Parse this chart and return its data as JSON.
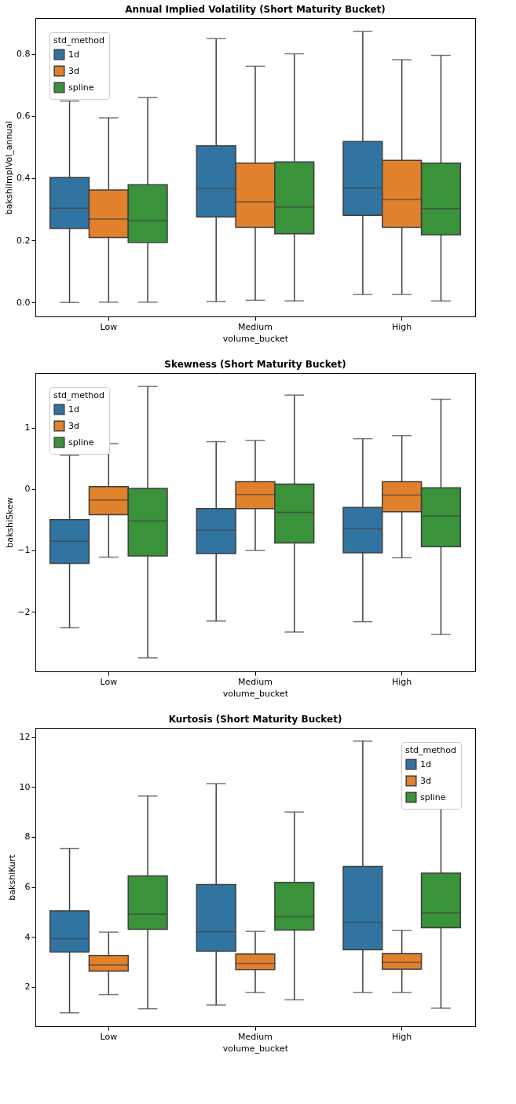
{
  "chart_data": [
    {
      "type": "box",
      "title": "Annual Implied Volatility (Short Maturity Bucket)",
      "xlabel": "volume_bucket",
      "ylabel": "bakshiImplVol_annual",
      "legend_title": "std_method",
      "legend": "top left",
      "categories": [
        "Low",
        "Medium",
        "High"
      ],
      "ylim": [
        -0.045,
        0.915
      ],
      "yticks": [
        {
          "value": 0,
          "label": "0.0"
        },
        {
          "value": 0.2,
          "label": "0.2"
        },
        {
          "value": 0.4,
          "label": "0.4"
        },
        {
          "value": 0.6,
          "label": "0.6"
        },
        {
          "value": 0.8,
          "label": "0.8"
        }
      ],
      "series": [
        {
          "name": "1d",
          "color": "#3274a1",
          "boxes": [
            {
              "low": 0.0,
              "q1": 0.238,
              "median": 0.303,
              "q3": 0.402,
              "high": 0.648
            },
            {
              "low": 0.003,
              "q1": 0.275,
              "median": 0.366,
              "q3": 0.504,
              "high": 0.849
            },
            {
              "low": 0.026,
              "q1": 0.28,
              "median": 0.368,
              "q3": 0.518,
              "high": 0.872
            }
          ]
        },
        {
          "name": "3d",
          "color": "#e1812c",
          "boxes": [
            {
              "low": 0.001,
              "q1": 0.209,
              "median": 0.268,
              "q3": 0.362,
              "high": 0.594
            },
            {
              "low": 0.007,
              "q1": 0.242,
              "median": 0.324,
              "q3": 0.448,
              "high": 0.76
            },
            {
              "low": 0.026,
              "q1": 0.242,
              "median": 0.331,
              "q3": 0.457,
              "high": 0.781
            }
          ]
        },
        {
          "name": "spline",
          "color": "#3a923a",
          "boxes": [
            {
              "low": 0.001,
              "q1": 0.193,
              "median": 0.264,
              "q3": 0.379,
              "high": 0.659
            },
            {
              "low": 0.005,
              "q1": 0.221,
              "median": 0.307,
              "q3": 0.452,
              "high": 0.8
            },
            {
              "low": 0.005,
              "q1": 0.218,
              "median": 0.302,
              "q3": 0.448,
              "high": 0.795
            }
          ]
        }
      ]
    },
    {
      "type": "box",
      "title": "Skewness (Short Maturity Bucket)",
      "xlabel": "volume_bucket",
      "ylabel": "bakshiSkew",
      "legend_title": "std_method",
      "legend": "top left",
      "categories": [
        "Low",
        "Medium",
        "High"
      ],
      "ylim": [
        -2.97,
        1.89
      ],
      "yticks": [
        {
          "value": -2,
          "label": "−2"
        },
        {
          "value": -1,
          "label": "−1"
        },
        0,
        1
      ],
      "series": [
        {
          "name": "1d",
          "color": "#3274a1",
          "boxes": [
            {
              "low": -2.26,
              "q1": -1.21,
              "median": -0.85,
              "q3": -0.5,
              "high": 0.55
            },
            {
              "low": -2.15,
              "q1": -1.05,
              "median": -0.67,
              "q3": -0.32,
              "high": 0.77
            },
            {
              "low": -2.16,
              "q1": -1.04,
              "median": -0.65,
              "q3": -0.3,
              "high": 0.82
            }
          ]
        },
        {
          "name": "3d",
          "color": "#e1812c",
          "boxes": [
            {
              "low": -1.11,
              "q1": -0.42,
              "median": -0.18,
              "q3": 0.04,
              "high": 0.74
            },
            {
              "low": -1.0,
              "q1": -0.32,
              "median": -0.09,
              "q3": 0.12,
              "high": 0.79
            },
            {
              "low": -1.12,
              "q1": -0.37,
              "median": -0.1,
              "q3": 0.12,
              "high": 0.87
            }
          ]
        },
        {
          "name": "spline",
          "color": "#3a923a",
          "boxes": [
            {
              "low": -2.75,
              "q1": -1.09,
              "median": -0.52,
              "q3": 0.01,
              "high": 1.67
            },
            {
              "low": -2.33,
              "q1": -0.88,
              "median": -0.38,
              "q3": 0.08,
              "high": 1.53
            },
            {
              "low": -2.37,
              "q1": -0.94,
              "median": -0.44,
              "q3": 0.02,
              "high": 1.46
            }
          ]
        }
      ]
    },
    {
      "type": "box",
      "title": "Kurtosis (Short Maturity Bucket)",
      "xlabel": "volume_bucket",
      "ylabel": "bakshiKurt",
      "legend_title": "std_method",
      "legend": "top right",
      "categories": [
        "Low",
        "Medium",
        "High"
      ],
      "ylim": [
        0.42,
        12.37
      ],
      "yticks": [
        2,
        4,
        6,
        8,
        10,
        12
      ],
      "series": [
        {
          "name": "1d",
          "color": "#3274a1",
          "boxes": [
            {
              "low": 0.96,
              "q1": 3.39,
              "median": 3.93,
              "q3": 5.04,
              "high": 7.54
            },
            {
              "low": 1.27,
              "q1": 3.43,
              "median": 4.21,
              "q3": 6.1,
              "high": 10.14
            },
            {
              "low": 1.77,
              "q1": 3.49,
              "median": 4.59,
              "q3": 6.82,
              "high": 11.84
            }
          ]
        },
        {
          "name": "3d",
          "color": "#e1812c",
          "boxes": [
            {
              "low": 1.69,
              "q1": 2.63,
              "median": 2.87,
              "q3": 3.26,
              "high": 4.19
            },
            {
              "low": 1.77,
              "q1": 2.69,
              "median": 2.93,
              "q3": 3.31,
              "high": 4.22
            },
            {
              "low": 1.77,
              "q1": 2.71,
              "median": 2.98,
              "q3": 3.33,
              "high": 4.26
            }
          ]
        },
        {
          "name": "spline",
          "color": "#3a923a",
          "boxes": [
            {
              "low": 1.12,
              "q1": 4.3,
              "median": 4.91,
              "q3": 6.44,
              "high": 9.64
            },
            {
              "low": 1.48,
              "q1": 4.27,
              "median": 4.81,
              "q3": 6.18,
              "high": 9.0
            },
            {
              "low": 1.14,
              "q1": 4.37,
              "median": 4.96,
              "q3": 6.55,
              "high": 9.79
            }
          ]
        }
      ]
    }
  ]
}
